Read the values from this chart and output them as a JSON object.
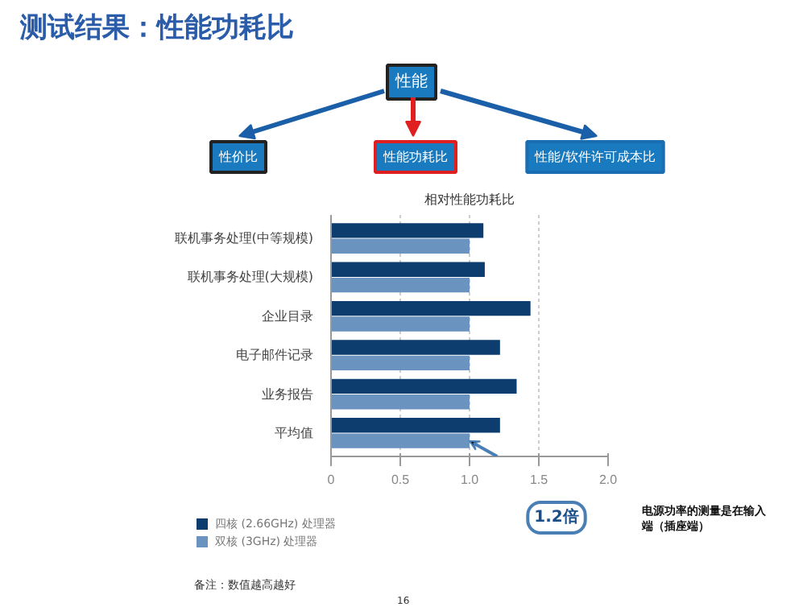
{
  "chart_data": {
    "type": "bar",
    "orientation": "horizontal",
    "title": "相对性能功耗比",
    "subtitle": "测试结果：性能功耗比",
    "categories": [
      "联机事务处理(中等规模)",
      "联机事务处理(大规模)",
      "企业目录",
      "电子邮件记录",
      "业务报告",
      "平均值"
    ],
    "series": [
      {
        "name": "四核 (2.66GHz) 处理器",
        "color": "#0d3d6e",
        "values": [
          1.1,
          1.11,
          1.44,
          1.22,
          1.34,
          1.22
        ]
      },
      {
        "name": "双核 (3GHz) 处理器",
        "color": "#6a93bf",
        "values": [
          1.0,
          1.0,
          1.0,
          1.0,
          1.0,
          1.0
        ]
      }
    ],
    "xlim": [
      0,
      2.0
    ],
    "xticks": [
      0,
      0.5,
      {
        "value": 1,
        "label": "1.0"
      },
      1.5,
      {
        "value": 2,
        "label": "2.0"
      }
    ],
    "grid": "x",
    "legend": "bottom",
    "annotations": [
      "性能",
      "性价比",
      "性能功耗比",
      "性能/软件许可成本比",
      "1.2倍",
      "电源功率的测量是在输入端（插座端）",
      "备注：数值越高越好",
      "16"
    ]
  }
}
